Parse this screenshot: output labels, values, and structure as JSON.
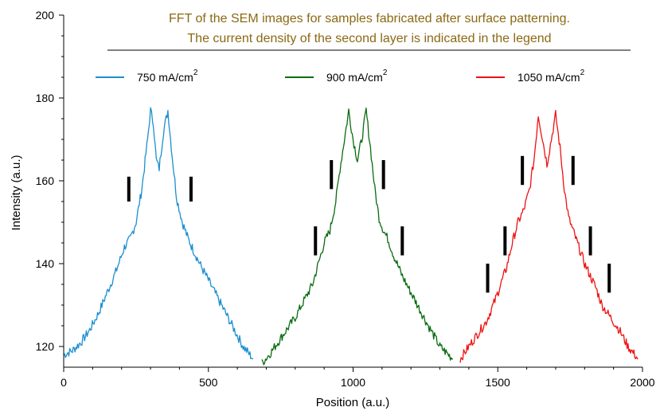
{
  "chart_data": {
    "type": "line",
    "title_lines": [
      "FFT of the SEM images for samples  fabricated after surface patterning.",
      "The current density of the second layer is indicated in the legend"
    ],
    "title_color": "#8B6914",
    "xlabel": "Position (a.u.)",
    "ylabel": "Intensity (a.u.)",
    "xlim": [
      0,
      2000
    ],
    "ylim": [
      115,
      200
    ],
    "x_ticks": [
      0,
      500,
      1000,
      1500,
      2000
    ],
    "y_ticks": [
      120,
      140,
      160,
      180,
      200
    ],
    "legend_position": "top",
    "series": [
      {
        "name": "750 mA/cm",
        "name_sup": "2",
        "color": "#1b8fd0",
        "x": [
          0,
          30,
          60,
          90,
          120,
          150,
          180,
          210,
          230,
          250,
          270,
          290,
          300,
          310,
          320,
          330,
          345,
          360,
          375,
          390,
          410,
          430,
          450,
          470,
          500,
          530,
          560,
          590,
          620,
          655
        ],
        "y": [
          118,
          119,
          121,
          124,
          128,
          133,
          138,
          144,
          146,
          150,
          158,
          170,
          177,
          174,
          165,
          163,
          172,
          177,
          166,
          156,
          150,
          146,
          143,
          140,
          136,
          132,
          128,
          124,
          120,
          117
        ]
      },
      {
        "name": "900 mA/cm",
        "name_sup": "2",
        "color": "#0a6b10",
        "x": [
          685,
          710,
          740,
          770,
          800,
          830,
          860,
          880,
          900,
          920,
          940,
          955,
          970,
          985,
          1000,
          1015,
          1030,
          1045,
          1060,
          1075,
          1090,
          1105,
          1120,
          1140,
          1170,
          1200,
          1230,
          1260,
          1300,
          1345
        ],
        "y": [
          116,
          118,
          121,
          124,
          127,
          131,
          135,
          140,
          145,
          148,
          155,
          163,
          170,
          177,
          170,
          165,
          170,
          177,
          168,
          158,
          151,
          148,
          146,
          142,
          137,
          133,
          129,
          125,
          120,
          117
        ]
      },
      {
        "name": "1050 mA/cm",
        "name_sup": "2",
        "color": "#ee1111",
        "x": [
          1370,
          1400,
          1430,
          1460,
          1490,
          1510,
          1530,
          1550,
          1570,
          1590,
          1610,
          1625,
          1640,
          1655,
          1670,
          1685,
          1700,
          1715,
          1730,
          1745,
          1760,
          1780,
          1800,
          1820,
          1840,
          1860,
          1890,
          1920,
          1950,
          1985
        ],
        "y": [
          117,
          120,
          123,
          126,
          131,
          135,
          139,
          145,
          150,
          153,
          158,
          165,
          176,
          170,
          164,
          170,
          176,
          168,
          158,
          151,
          148,
          144,
          140,
          137,
          134,
          130,
          127,
          124,
          120,
          117
        ]
      }
    ],
    "annotations": {
      "type": "vertical-marker-bars",
      "color": "#000000",
      "markers": [
        {
          "x": 225,
          "y_low": 155,
          "y_high": 161
        },
        {
          "x": 440,
          "y_low": 155,
          "y_high": 161
        },
        {
          "x": 870,
          "y_low": 142,
          "y_high": 149
        },
        {
          "x": 925,
          "y_low": 158,
          "y_high": 165
        },
        {
          "x": 1105,
          "y_low": 158,
          "y_high": 165
        },
        {
          "x": 1170,
          "y_low": 142,
          "y_high": 149
        },
        {
          "x": 1465,
          "y_low": 133,
          "y_high": 140
        },
        {
          "x": 1525,
          "y_low": 142,
          "y_high": 149
        },
        {
          "x": 1585,
          "y_low": 159,
          "y_high": 166
        },
        {
          "x": 1760,
          "y_low": 159,
          "y_high": 166
        },
        {
          "x": 1820,
          "y_low": 142,
          "y_high": 149
        },
        {
          "x": 1885,
          "y_low": 133,
          "y_high": 140
        }
      ]
    }
  }
}
